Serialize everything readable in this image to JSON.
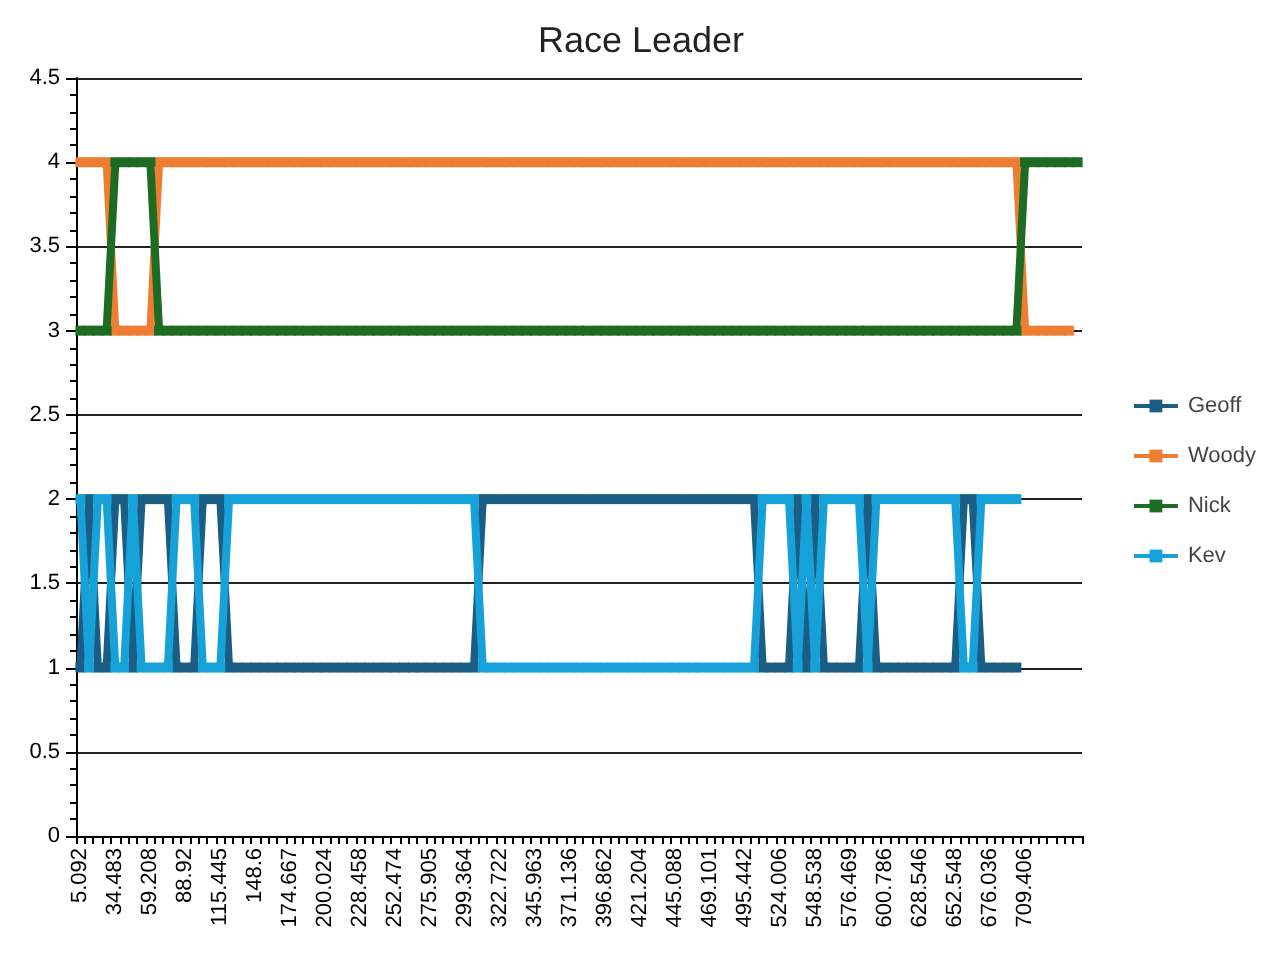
{
  "chart_data": {
    "type": "line",
    "title": "Race Leader",
    "categories": [
      "5.092",
      null,
      null,
      null,
      "34.483",
      null,
      null,
      null,
      "59.208",
      null,
      null,
      null,
      "88.92",
      null,
      null,
      null,
      "115.445",
      null,
      null,
      null,
      "148.6",
      null,
      null,
      null,
      "174.667",
      null,
      null,
      null,
      "200.024",
      null,
      null,
      null,
      "228.458",
      null,
      null,
      null,
      "252.474",
      null,
      null,
      null,
      "275.905",
      null,
      null,
      null,
      "299.364",
      null,
      null,
      null,
      "322.722",
      null,
      null,
      null,
      "345.963",
      null,
      null,
      null,
      "371.136",
      null,
      null,
      null,
      "396.862",
      null,
      null,
      null,
      "421.204",
      null,
      null,
      null,
      "445.088",
      null,
      null,
      null,
      "469.101",
      null,
      null,
      null,
      "495.442",
      null,
      null,
      null,
      "524.006",
      null,
      null,
      null,
      "548.538",
      null,
      null,
      null,
      "576.469",
      null,
      null,
      null,
      "600.786",
      null,
      null,
      null,
      "628.546",
      null,
      null,
      null,
      "652.548",
      null,
      null,
      null,
      "676.036",
      null,
      null,
      null,
      "709.406",
      null,
      null,
      null,
      null,
      null,
      null
    ],
    "series": [
      {
        "name": "Geoff",
        "color": "#1b5e85",
        "values": [
          1,
          2,
          1,
          1,
          2,
          2,
          1,
          2,
          2,
          2,
          2,
          1,
          1,
          1,
          2,
          2,
          2,
          1,
          1,
          1,
          1,
          1,
          1,
          1,
          1,
          1,
          1,
          1,
          1,
          1,
          1,
          1,
          1,
          1,
          1,
          1,
          1,
          1,
          1,
          1,
          1,
          1,
          1,
          1,
          1,
          1,
          2,
          2,
          2,
          2,
          2,
          2,
          2,
          2,
          2,
          2,
          2,
          2,
          2,
          2,
          2,
          2,
          2,
          2,
          2,
          2,
          2,
          2,
          2,
          2,
          2,
          2,
          2,
          2,
          2,
          2,
          2,
          2,
          1,
          1,
          1,
          1,
          2,
          1,
          2,
          1,
          1,
          1,
          1,
          1,
          2,
          1,
          1,
          1,
          1,
          1,
          1,
          1,
          1,
          1,
          1,
          2,
          2,
          1,
          1,
          1,
          1,
          1,
          null,
          null,
          null,
          null,
          null,
          null,
          null
        ]
      },
      {
        "name": "Woody",
        "color": "#ed7d31",
        "values": [
          4,
          4,
          4,
          4,
          3,
          3,
          3,
          3,
          3,
          4,
          4,
          4,
          4,
          4,
          4,
          4,
          4,
          4,
          4,
          4,
          4,
          4,
          4,
          4,
          4,
          4,
          4,
          4,
          4,
          4,
          4,
          4,
          4,
          4,
          4,
          4,
          4,
          4,
          4,
          4,
          4,
          4,
          4,
          4,
          4,
          4,
          4,
          4,
          4,
          4,
          4,
          4,
          4,
          4,
          4,
          4,
          4,
          4,
          4,
          4,
          4,
          4,
          4,
          4,
          4,
          4,
          4,
          4,
          4,
          4,
          4,
          4,
          4,
          4,
          4,
          4,
          4,
          4,
          4,
          4,
          4,
          4,
          4,
          4,
          4,
          4,
          4,
          4,
          4,
          4,
          4,
          4,
          4,
          4,
          4,
          4,
          4,
          4,
          4,
          4,
          4,
          4,
          4,
          4,
          4,
          4,
          4,
          4,
          3,
          3,
          3,
          3,
          3,
          3,
          null
        ]
      },
      {
        "name": "Nick",
        "color": "#1e6b24",
        "values": [
          3,
          3,
          3,
          3,
          4,
          4,
          4,
          4,
          4,
          3,
          3,
          3,
          3,
          3,
          3,
          3,
          3,
          3,
          3,
          3,
          3,
          3,
          3,
          3,
          3,
          3,
          3,
          3,
          3,
          3,
          3,
          3,
          3,
          3,
          3,
          3,
          3,
          3,
          3,
          3,
          3,
          3,
          3,
          3,
          3,
          3,
          3,
          3,
          3,
          3,
          3,
          3,
          3,
          3,
          3,
          3,
          3,
          3,
          3,
          3,
          3,
          3,
          3,
          3,
          3,
          3,
          3,
          3,
          3,
          3,
          3,
          3,
          3,
          3,
          3,
          3,
          3,
          3,
          3,
          3,
          3,
          3,
          3,
          3,
          3,
          3,
          3,
          3,
          3,
          3,
          3,
          3,
          3,
          3,
          3,
          3,
          3,
          3,
          3,
          3,
          3,
          3,
          3,
          3,
          3,
          3,
          3,
          3,
          4,
          4,
          4,
          4,
          4,
          4,
          4
        ]
      },
      {
        "name": "Kev",
        "color": "#16a2d8",
        "values": [
          2,
          1,
          2,
          2,
          1,
          1,
          2,
          1,
          1,
          1,
          1,
          2,
          2,
          2,
          1,
          1,
          1,
          2,
          2,
          2,
          2,
          2,
          2,
          2,
          2,
          2,
          2,
          2,
          2,
          2,
          2,
          2,
          2,
          2,
          2,
          2,
          2,
          2,
          2,
          2,
          2,
          2,
          2,
          2,
          2,
          2,
          1,
          1,
          1,
          1,
          1,
          1,
          1,
          1,
          1,
          1,
          1,
          1,
          1,
          1,
          1,
          1,
          1,
          1,
          1,
          1,
          1,
          1,
          1,
          1,
          1,
          1,
          1,
          1,
          1,
          1,
          1,
          1,
          2,
          2,
          2,
          2,
          1,
          2,
          1,
          2,
          2,
          2,
          2,
          2,
          1,
          2,
          2,
          2,
          2,
          2,
          2,
          2,
          2,
          2,
          2,
          1,
          1,
          2,
          2,
          2,
          2,
          2,
          null,
          null,
          null,
          null,
          null,
          null,
          null
        ]
      }
    ],
    "ylim": [
      0,
      4.5
    ],
    "yticks": [
      0,
      0.5,
      1,
      1.5,
      2,
      2.5,
      3,
      3.5,
      4,
      4.5
    ],
    "grid": "y",
    "legend": "right",
    "marker": "square",
    "line_style": "solid"
  }
}
